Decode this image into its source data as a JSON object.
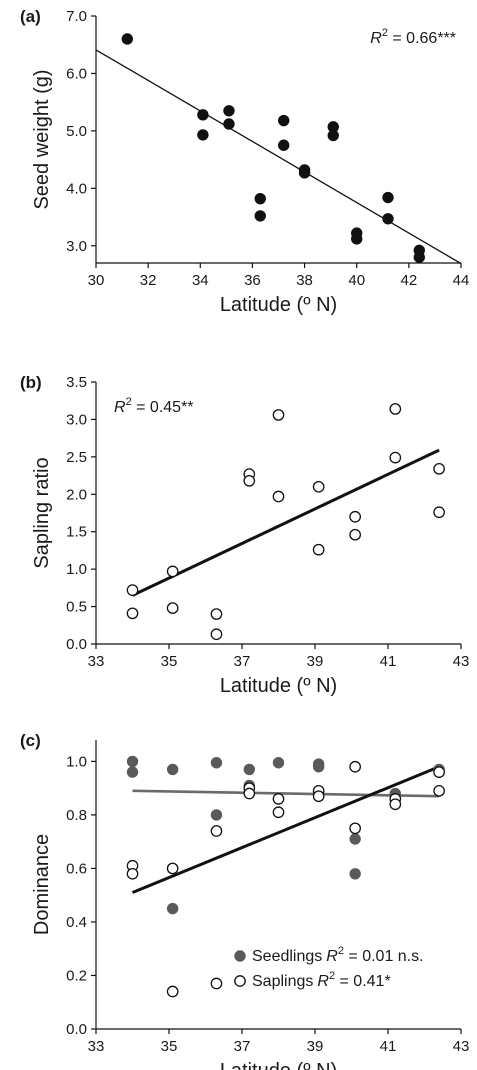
{
  "chart_data": [
    {
      "panel": "(a)",
      "type": "scatter",
      "xlabel": "Latitude (º N)",
      "ylabel": "Seed weight (g)",
      "xlim": [
        30,
        44
      ],
      "ylim": [
        2.7,
        7.0
      ],
      "xticks": [
        "30",
        "32",
        "34",
        "36",
        "38",
        "40",
        "42",
        "44"
      ],
      "yticks": [
        "3.0",
        "4.0",
        "5.0",
        "6.0",
        "7.0"
      ],
      "annotation": {
        "prefix": "R",
        "sup": "2",
        "suffix": " = 0.66***"
      },
      "points": [
        [
          31.2,
          6.6
        ],
        [
          34.1,
          5.28
        ],
        [
          34.1,
          4.93
        ],
        [
          35.1,
          5.35
        ],
        [
          35.1,
          5.12
        ],
        [
          36.3,
          3.82
        ],
        [
          36.3,
          3.52
        ],
        [
          37.2,
          5.18
        ],
        [
          37.2,
          4.75
        ],
        [
          38,
          4.32
        ],
        [
          38,
          4.27
        ],
        [
          39.1,
          5.07
        ],
        [
          39.1,
          4.92
        ],
        [
          40,
          3.22
        ],
        [
          40,
          3.12
        ],
        [
          41.2,
          3.84
        ],
        [
          41.2,
          3.47
        ],
        [
          42.4,
          2.92
        ],
        [
          42.4,
          2.8
        ]
      ],
      "fit": [
        [
          30,
          6.41
        ],
        [
          44,
          2.69
        ]
      ],
      "marker": "filled-black",
      "grid": false
    },
    {
      "panel": "(b)",
      "type": "scatter",
      "xlabel": "Latitude (º N)",
      "ylabel": "Sapling ratio",
      "xlim": [
        33,
        43
      ],
      "ylim": [
        0,
        3.5
      ],
      "xticks": [
        "33",
        "35",
        "37",
        "39",
        "41",
        "43"
      ],
      "yticks": [
        "0.0",
        "0.5",
        "1.0",
        "1.5",
        "2.0",
        "2.5",
        "3.0",
        "3.5"
      ],
      "annotation": {
        "prefix": "R",
        "sup": "2",
        "suffix": " = 0.45**"
      },
      "points": [
        [
          34,
          0.72
        ],
        [
          34,
          0.41
        ],
        [
          35.1,
          0.97
        ],
        [
          35.1,
          0.48
        ],
        [
          36.3,
          0.4
        ],
        [
          36.3,
          0.13
        ],
        [
          37.2,
          2.27
        ],
        [
          37.2,
          2.18
        ],
        [
          38,
          3.06
        ],
        [
          38,
          1.97
        ],
        [
          39.1,
          2.1
        ],
        [
          39.1,
          1.26
        ],
        [
          40.1,
          1.7
        ],
        [
          40.1,
          1.46
        ],
        [
          41.2,
          3.14
        ],
        [
          41.2,
          2.49
        ],
        [
          42.4,
          2.34
        ],
        [
          42.4,
          1.76
        ]
      ],
      "fit": [
        [
          34,
          0.65
        ],
        [
          42.4,
          2.59
        ]
      ],
      "marker": "open-circle",
      "grid": false
    },
    {
      "panel": "(c)",
      "type": "scatter",
      "xlabel": "Latitude (º N)",
      "ylabel": "Dominance",
      "xlim": [
        33,
        43
      ],
      "ylim": [
        0,
        1.08
      ],
      "xticks": [
        "33",
        "35",
        "37",
        "39",
        "41",
        "43"
      ],
      "yticks": [
        "0.0",
        "0.2",
        "0.4",
        "0.6",
        "0.8",
        "1.0"
      ],
      "legend_position": "bottom-right",
      "series": [
        {
          "name": "Seedlings",
          "stat": {
            "prefix": "R",
            "sup": "2",
            "suffix": " = 0.01 n.s."
          },
          "color": "#5a5a5a",
          "marker": "filled-grey",
          "points": [
            [
              34,
              1.0
            ],
            [
              34,
              0.96
            ],
            [
              35.1,
              0.97
            ],
            [
              35.1,
              0.45
            ],
            [
              36.3,
              0.995
            ],
            [
              36.3,
              0.8
            ],
            [
              37.2,
              0.97
            ],
            [
              37.2,
              0.91
            ],
            [
              38,
              0.995
            ],
            [
              39.1,
              0.99
            ],
            [
              39.1,
              0.98
            ],
            [
              40.1,
              0.71
            ],
            [
              40.1,
              0.58
            ],
            [
              41.2,
              0.88
            ],
            [
              41.2,
              0.86
            ],
            [
              42.4,
              0.97
            ],
            [
              42.4,
              0.96
            ]
          ],
          "fit": [
            [
              34,
              0.89
            ],
            [
              42.4,
              0.87
            ]
          ]
        },
        {
          "name": "Saplings",
          "stat": {
            "prefix": "R",
            "sup": "2",
            "suffix": " = 0.41*"
          },
          "color": "#111111",
          "marker": "open-circle",
          "points": [
            [
              34,
              0.61
            ],
            [
              34,
              0.58
            ],
            [
              35.1,
              0.6
            ],
            [
              35.1,
              0.14
            ],
            [
              36.3,
              0.74
            ],
            [
              36.3,
              0.17
            ],
            [
              37.2,
              0.9
            ],
            [
              37.2,
              0.88
            ],
            [
              38,
              0.86
            ],
            [
              38,
              0.81
            ],
            [
              39.1,
              0.89
            ],
            [
              39.1,
              0.87
            ],
            [
              40.1,
              0.98
            ],
            [
              40.1,
              0.75
            ],
            [
              41.2,
              0.86
            ],
            [
              41.2,
              0.84
            ],
            [
              42.4,
              0.96
            ],
            [
              42.4,
              0.89
            ]
          ],
          "fit": [
            [
              34,
              0.51
            ],
            [
              42.4,
              0.98
            ]
          ]
        }
      ],
      "grid": false
    }
  ]
}
